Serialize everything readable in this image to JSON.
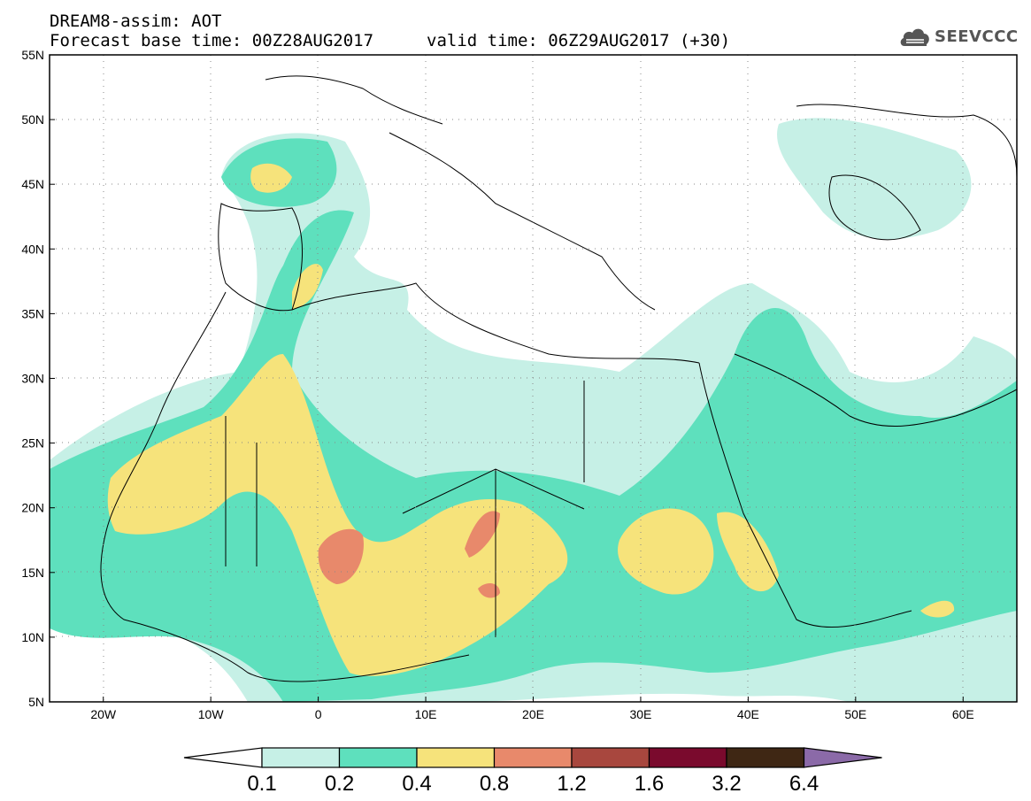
{
  "title": {
    "line1": "DREAM8-assim: AOT",
    "line2": "Forecast base time: 00Z28AUG2017",
    "line3": "valid time: 06Z29AUG2017 (+30)"
  },
  "logo": {
    "text": "SEEVCCC",
    "icon": "cloud-icon"
  },
  "map": {
    "lat_ticks": [
      "55N",
      "50N",
      "45N",
      "40N",
      "35N",
      "30N",
      "25N",
      "20N",
      "15N",
      "10N",
      "5N"
    ],
    "lon_ticks": [
      "20W",
      "10W",
      "0",
      "10E",
      "20E",
      "30E",
      "40E",
      "50E",
      "60E"
    ],
    "lat_range": [
      5,
      55
    ],
    "lon_range": [
      -25,
      65
    ]
  },
  "colorbar": {
    "labels": [
      "0.1",
      "0.2",
      "0.4",
      "0.8",
      "1.2",
      "1.6",
      "3.2",
      "6.4"
    ],
    "colors": [
      "#c6f0e6",
      "#5ee0bd",
      "#f6e37b",
      "#e8896b",
      "#a8473e",
      "#7a0a2d",
      "#3f2714",
      "#8b6aa8"
    ]
  },
  "colors": {
    "c1": "#c6f0e6",
    "c2": "#5ee0bd",
    "c3": "#f6e37b",
    "c4": "#e8896b"
  }
}
